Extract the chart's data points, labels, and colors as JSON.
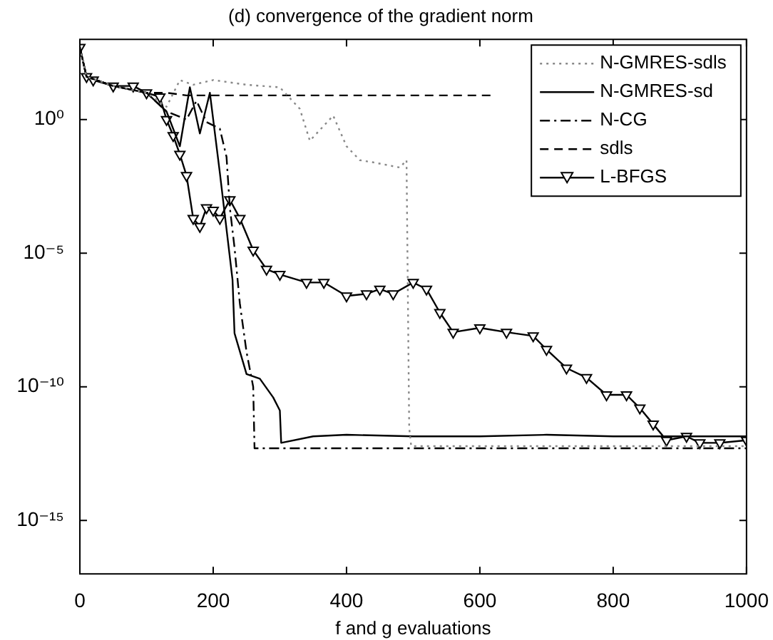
{
  "chart_data": {
    "type": "line",
    "title": "(d) convergence of the gradient norm",
    "xlabel": "f and g evaluations",
    "log": "y",
    "grid": false,
    "legend": "top right",
    "xlim": [
      0,
      1000
    ],
    "xticks": [
      0,
      200,
      400,
      600,
      800,
      1000
    ],
    "ylim": [
      1e-17,
      1000.0
    ],
    "yticks": [
      {
        "value": 1,
        "label": "10⁰"
      },
      {
        "value": 1e-05,
        "label": "10⁻⁵"
      },
      {
        "value": 1e-10,
        "label": "10⁻¹⁰"
      },
      {
        "value": 1e-15,
        "label": "10⁻¹⁵"
      }
    ],
    "series": [
      {
        "name": "N-GMRES-sdls",
        "color": "#888888",
        "line_style": "dotted",
        "marker": "none",
        "x": [
          0,
          10,
          50,
          100,
          130,
          150,
          170,
          200,
          250,
          300,
          330,
          345,
          380,
          400,
          420,
          440,
          480,
          490,
          494,
          497,
          520,
          600,
          700,
          800,
          900,
          1000
        ],
        "values": [
          500.0,
          40,
          18,
          10,
          3,
          30,
          20,
          30,
          20,
          16,
          2.5,
          0.16,
          1.4,
          0.1,
          0.03,
          0.025,
          0.016,
          0.03,
          3e-12,
          6e-13,
          6e-13,
          6e-13,
          6e-13,
          6e-13,
          6e-13,
          6e-13
        ]
      },
      {
        "name": "N-GMRES-sd",
        "color": "#000000",
        "line_style": "solid",
        "marker": "none",
        "x": [
          0,
          10,
          50,
          100,
          130,
          150,
          165,
          180,
          195,
          210,
          229,
          232,
          245,
          250,
          270,
          290,
          300,
          302,
          350,
          400,
          500,
          600,
          700,
          800,
          900,
          1000
        ],
        "values": [
          500.0,
          40,
          18,
          10,
          2,
          0.1,
          16,
          0.3,
          10,
          0.01,
          1e-06,
          1e-08,
          8e-10,
          3e-10,
          2e-10,
          4e-11,
          1.3e-11,
          8e-13,
          1.4e-12,
          1.6e-12,
          1.4e-12,
          1.4e-12,
          1.6e-12,
          1.4e-12,
          1.4e-12,
          1.4e-12
        ]
      },
      {
        "name": "N-CG",
        "color": "#000000",
        "line_style": "dashdot",
        "marker": "none",
        "x": [
          0,
          10,
          50,
          100,
          130,
          160,
          175,
          190,
          210,
          220,
          225,
          232,
          240,
          250,
          260,
          262,
          300,
          400,
          500,
          600,
          700,
          800,
          900,
          1000
        ],
        "values": [
          500.0,
          40,
          18,
          10,
          2,
          1,
          5,
          0.8,
          0.45,
          0.04,
          0.0005,
          1.6e-05,
          1.3e-07,
          2e-09,
          1e-10,
          5e-13,
          5e-13,
          5e-13,
          5e-13,
          5e-13,
          5e-13,
          5e-13,
          5e-13,
          5e-13
        ]
      },
      {
        "name": "sdls",
        "color": "#000000",
        "line_style": "dashed",
        "marker": "none",
        "x": [
          0,
          10,
          50,
          100,
          130,
          160,
          200,
          300,
          400,
          500,
          620
        ],
        "values": [
          500.0,
          40,
          18,
          10,
          10,
          8,
          8,
          8,
          8,
          8,
          8
        ]
      },
      {
        "name": "L-BFGS",
        "color": "#000000",
        "line_style": "solid",
        "marker": "triangle",
        "x": [
          0,
          10,
          20,
          50,
          80,
          100,
          120,
          130,
          140,
          150,
          160,
          170,
          180,
          190,
          200,
          210,
          225,
          240,
          260,
          280,
          300,
          340,
          366,
          400,
          430,
          450,
          470,
          500,
          520,
          540,
          560,
          600,
          640,
          680,
          700,
          730,
          760,
          790,
          820,
          840,
          860,
          880,
          910,
          930,
          960,
          1000
        ],
        "values": [
          500.0,
          40,
          30,
          18,
          18,
          10,
          7,
          1,
          0.25,
          0.05,
          0.008,
          0.0002,
          0.0001,
          0.0005,
          0.0004,
          0.0002,
          0.001,
          0.0002,
          1.3e-05,
          2.5e-06,
          1.6e-06,
          8e-07,
          8e-07,
          2.5e-07,
          3e-07,
          4.5e-07,
          3e-07,
          8e-07,
          4.5e-07,
          6e-08,
          1.1e-08,
          1.6e-08,
          1.1e-08,
          8e-09,
          2.5e-09,
          5e-10,
          2.2e-10,
          5e-11,
          5e-11,
          1.6e-11,
          4e-12,
          1e-12,
          1.4e-12,
          8e-13,
          8e-13,
          1e-12
        ]
      }
    ]
  }
}
